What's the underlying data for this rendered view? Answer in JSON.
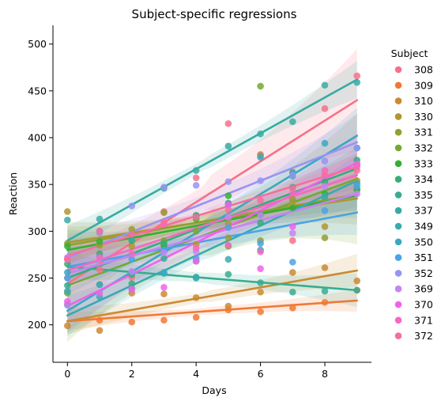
{
  "chart_data": {
    "type": "scatter",
    "title": "Subject-specific regressions",
    "xlabel": "Days",
    "ylabel": "Reaction",
    "xlim": [
      -0.45,
      9.45
    ],
    "ylim": [
      160,
      520
    ],
    "xticks": [
      0,
      2,
      4,
      6,
      8
    ],
    "yticks": [
      200,
      250,
      300,
      350,
      400,
      450,
      500
    ],
    "legend_title": "Subject",
    "legend_position": "right",
    "series": [
      {
        "name": "308",
        "color": "#f77189",
        "points": [
          [
            0,
            250
          ],
          [
            1,
            259
          ],
          [
            2,
            251
          ],
          [
            3,
            321
          ],
          [
            4,
            357
          ],
          [
            5,
            415
          ],
          [
            6,
            382
          ],
          [
            7,
            290
          ],
          [
            8,
            431
          ],
          [
            9,
            466
          ]
        ],
        "fit": [
          244,
          440
        ],
        "band": [
          [
            0,
            35
          ],
          [
            9,
            55
          ]
        ]
      },
      {
        "name": "309",
        "color": "#f17934",
        "points": [
          [
            0,
            222
          ],
          [
            1,
            205
          ],
          [
            2,
            203
          ],
          [
            3,
            205
          ],
          [
            4,
            208
          ],
          [
            5,
            216
          ],
          [
            6,
            214
          ],
          [
            7,
            218
          ],
          [
            8,
            224
          ],
          [
            9,
            237
          ]
        ],
        "fit": [
          204,
          226
        ],
        "band": [
          [
            0,
            10
          ],
          [
            9,
            12
          ]
        ]
      },
      {
        "name": "310",
        "color": "#cb8a32",
        "points": [
          [
            0,
            199
          ],
          [
            1,
            194
          ],
          [
            2,
            234
          ],
          [
            3,
            233
          ],
          [
            4,
            229
          ],
          [
            5,
            220
          ],
          [
            6,
            235
          ],
          [
            7,
            256
          ],
          [
            8,
            261
          ],
          [
            9,
            247
          ]
        ],
        "fit": [
          204,
          258
        ],
        "band": [
          [
            0,
            14
          ],
          [
            9,
            18
          ]
        ]
      },
      {
        "name": "330",
        "color": "#af9632",
        "points": [
          [
            0,
            321
          ],
          [
            1,
            300
          ],
          [
            2,
            284
          ],
          [
            3,
            285
          ],
          [
            4,
            286
          ],
          [
            5,
            308
          ],
          [
            6,
            381
          ],
          [
            7,
            331
          ],
          [
            8,
            305
          ],
          [
            9,
            354
          ]
        ],
        "fit": [
          288,
          335
        ],
        "band": [
          [
            0,
            22
          ],
          [
            9,
            28
          ]
        ]
      },
      {
        "name": "331",
        "color": "#949f32",
        "points": [
          [
            0,
            287
          ],
          [
            1,
            285
          ],
          [
            2,
            302
          ],
          [
            3,
            320
          ],
          [
            4,
            316
          ],
          [
            5,
            293
          ],
          [
            6,
            290
          ],
          [
            7,
            334
          ],
          [
            8,
            293
          ],
          [
            9,
            371
          ]
        ],
        "fit": [
          285,
          339
        ],
        "band": [
          [
            0,
            20
          ],
          [
            9,
            25
          ]
        ]
      },
      {
        "name": "332",
        "color": "#74a932",
        "points": [
          [
            0,
            234
          ],
          [
            1,
            243
          ],
          [
            2,
            254
          ],
          [
            3,
            290
          ],
          [
            4,
            300
          ],
          [
            5,
            284
          ],
          [
            6,
            455
          ],
          [
            7,
            363
          ],
          [
            8,
            335
          ],
          [
            9,
            344
          ]
        ],
        "fit": [
          242,
          356
        ],
        "band": [
          [
            0,
            60
          ],
          [
            9,
            70
          ]
        ]
      },
      {
        "name": "333",
        "color": "#33b032",
        "points": [
          [
            0,
            284
          ],
          [
            1,
            289
          ],
          [
            2,
            290
          ],
          [
            3,
            285
          ],
          [
            4,
            313
          ],
          [
            5,
            338
          ],
          [
            6,
            318
          ],
          [
            7,
            325
          ],
          [
            8,
            340
          ],
          [
            9,
            345
          ]
        ],
        "fit": [
          280,
          338
        ],
        "band": [
          [
            0,
            12
          ],
          [
            9,
            16
          ]
        ]
      },
      {
        "name": "334",
        "color": "#34ae79",
        "points": [
          [
            0,
            265
          ],
          [
            1,
            276
          ],
          [
            2,
            244
          ],
          [
            3,
            287
          ],
          [
            4,
            317
          ],
          [
            5,
            330
          ],
          [
            6,
            309
          ],
          [
            7,
            347
          ],
          [
            8,
            353
          ],
          [
            9,
            376
          ]
        ],
        "fit": [
          250,
          367
        ],
        "band": [
          [
            0,
            18
          ],
          [
            9,
            22
          ]
        ]
      },
      {
        "name": "335",
        "color": "#36ad91",
        "points": [
          [
            0,
            242
          ],
          [
            1,
            273
          ],
          [
            2,
            254
          ],
          [
            3,
            271
          ],
          [
            4,
            251
          ],
          [
            5,
            254
          ],
          [
            6,
            245
          ],
          [
            7,
            235
          ],
          [
            8,
            236
          ],
          [
            9,
            237
          ]
        ],
        "fit": [
          262,
          237
        ],
        "band": [
          [
            0,
            15
          ],
          [
            9,
            18
          ]
        ]
      },
      {
        "name": "337",
        "color": "#37aba3",
        "points": [
          [
            0,
            312
          ],
          [
            1,
            313
          ],
          [
            2,
            291
          ],
          [
            3,
            346
          ],
          [
            4,
            365
          ],
          [
            5,
            391
          ],
          [
            6,
            404
          ],
          [
            7,
            417
          ],
          [
            8,
            456
          ],
          [
            9,
            459
          ]
        ],
        "fit": [
          290,
          462
        ],
        "band": [
          [
            0,
            16
          ],
          [
            9,
            20
          ]
        ]
      },
      {
        "name": "349",
        "color": "#38aab2",
        "points": [
          [
            0,
            236
          ],
          [
            1,
            230
          ],
          [
            2,
            239
          ],
          [
            3,
            255
          ],
          [
            4,
            250
          ],
          [
            5,
            270
          ],
          [
            6,
            280
          ],
          [
            7,
            359
          ],
          [
            8,
            337
          ],
          [
            9,
            351
          ]
        ],
        "fit": [
          210,
          354
        ],
        "band": [
          [
            0,
            22
          ],
          [
            9,
            28
          ]
        ]
      },
      {
        "name": "350",
        "color": "#3aa8c3",
        "points": [
          [
            0,
            256
          ],
          [
            1,
            243
          ],
          [
            2,
            256
          ],
          [
            3,
            256
          ],
          [
            4,
            268
          ],
          [
            5,
            329
          ],
          [
            6,
            379
          ],
          [
            7,
            362
          ],
          [
            8,
            394
          ],
          [
            9,
            389
          ]
        ],
        "fit": [
          215,
          402
        ],
        "band": [
          [
            0,
            24
          ],
          [
            9,
            30
          ]
        ]
      },
      {
        "name": "351",
        "color": "#4aa3e7",
        "points": [
          [
            0,
            250
          ],
          [
            1,
            300
          ],
          [
            2,
            270
          ],
          [
            3,
            280
          ],
          [
            4,
            271
          ],
          [
            5,
            304
          ],
          [
            6,
            287
          ],
          [
            7,
            267
          ],
          [
            8,
            322
          ],
          [
            9,
            348
          ]
        ],
        "fit": [
          262,
          320
        ],
        "band": [
          [
            0,
            20
          ],
          [
            9,
            24
          ]
        ]
      },
      {
        "name": "352",
        "color": "#9893f4",
        "points": [
          [
            0,
            221
          ],
          [
            1,
            298
          ],
          [
            2,
            327
          ],
          [
            3,
            347
          ],
          [
            4,
            349
          ],
          [
            5,
            353
          ],
          [
            6,
            354
          ],
          [
            7,
            360
          ],
          [
            8,
            375
          ],
          [
            9,
            389
          ]
        ],
        "fit": [
          272,
          395
        ],
        "band": [
          [
            0,
            25
          ],
          [
            9,
            30
          ]
        ]
      },
      {
        "name": "369",
        "color": "#c584f4",
        "points": [
          [
            0,
            272
          ],
          [
            1,
            271
          ],
          [
            2,
            257
          ],
          [
            3,
            277
          ],
          [
            4,
            278
          ],
          [
            5,
            315
          ],
          [
            6,
            317
          ],
          [
            7,
            298
          ],
          [
            8,
            348
          ],
          [
            9,
            340
          ]
        ],
        "fit": [
          255,
          340
        ],
        "band": [
          [
            0,
            14
          ],
          [
            9,
            18
          ]
        ]
      },
      {
        "name": "370",
        "color": "#f062eb",
        "points": [
          [
            0,
            225
          ],
          [
            1,
            234
          ],
          [
            2,
            238
          ],
          [
            3,
            240
          ],
          [
            4,
            268
          ],
          [
            5,
            328
          ],
          [
            6,
            260
          ],
          [
            7,
            305
          ],
          [
            8,
            360
          ],
          [
            9,
            372
          ]
        ],
        "fit": [
          220,
          373
        ],
        "band": [
          [
            0,
            26
          ],
          [
            9,
            32
          ]
        ]
      },
      {
        "name": "371",
        "color": "#f569c0",
        "points": [
          [
            0,
            270
          ],
          [
            1,
            272
          ],
          [
            2,
            276
          ],
          [
            3,
            308
          ],
          [
            4,
            282
          ],
          [
            5,
            285
          ],
          [
            6,
            278
          ],
          [
            7,
            341
          ],
          [
            8,
            365
          ],
          [
            9,
            369
          ]
        ],
        "fit": [
          258,
          360
        ],
        "band": [
          [
            0,
            18
          ],
          [
            9,
            24
          ]
        ]
      },
      {
        "name": "372",
        "color": "#f76e9e",
        "points": [
          [
            0,
            270
          ],
          [
            1,
            300
          ],
          [
            2,
            297
          ],
          [
            3,
            310
          ],
          [
            4,
            315
          ],
          [
            5,
            323
          ],
          [
            6,
            333
          ],
          [
            7,
            346
          ],
          [
            8,
            360
          ],
          [
            9,
            365
          ]
        ],
        "fit": [
          274,
          369
        ],
        "band": [
          [
            0,
            10
          ],
          [
            9,
            14
          ]
        ]
      }
    ]
  }
}
